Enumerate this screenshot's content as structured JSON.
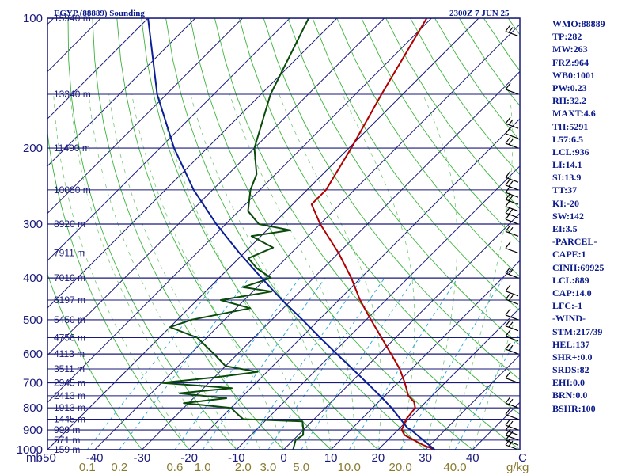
{
  "chart_data": {
    "type": "line",
    "title": "EGYP (88889) Sounding",
    "valid_time": "2300Z  7 JUN 25",
    "y_axis": {
      "scale": "log-pressure",
      "ylim": [
        1000,
        100
      ],
      "pressure_ticks": [
        "100",
        "200",
        "300",
        "400",
        "500",
        "600",
        "700",
        "800",
        "900",
        "1000"
      ],
      "unit_label": "mb"
    },
    "x_axis": {
      "type": "skewed-temperature",
      "xlim_at_1000mb": [
        -50,
        50
      ],
      "temp_ticks": [
        "-50",
        "-40",
        "-30",
        "-20",
        "-10",
        "0",
        "10",
        "20",
        "30",
        "40"
      ],
      "unit_label": "C"
    },
    "height_labels": [
      {
        "p": 1000,
        "label": "159 m"
      },
      {
        "p": 950,
        "label": "571 m"
      },
      {
        "p": 900,
        "label": "999 m"
      },
      {
        "p": 850,
        "label": "1445 m"
      },
      {
        "p": 800,
        "label": "1913 m"
      },
      {
        "p": 750,
        "label": "2413 m"
      },
      {
        "p": 700,
        "label": "2945 m"
      },
      {
        "p": 650,
        "label": "3511 m"
      },
      {
        "p": 600,
        "label": "4113 m"
      },
      {
        "p": 550,
        "label": "4756 m"
      },
      {
        "p": 500,
        "label": "5450 m"
      },
      {
        "p": 450,
        "label": "6197 m"
      },
      {
        "p": 400,
        "label": "7010 m"
      },
      {
        "p": 350,
        "label": "7911 m"
      },
      {
        "p": 300,
        "label": "8920 m"
      },
      {
        "p": 250,
        "label": "10080 m"
      },
      {
        "p": 200,
        "label": "11490 m"
      },
      {
        "p": 150,
        "label": "13340 m"
      },
      {
        "p": 100,
        "label": "15940 m"
      }
    ],
    "mixing_ratio_labels": [
      "0.1",
      "0.2",
      "0.6",
      "1.0",
      "2.0",
      "3.0",
      "5.0",
      "10.0",
      "20.0",
      "40.0"
    ],
    "mixing_ratio_unit": "g/kg",
    "series": [
      {
        "key": "temperature",
        "color": "#b00000",
        "points": [
          {
            "p": 1000,
            "t": 32.0
          },
          {
            "p": 975,
            "t": 28.5
          },
          {
            "p": 950,
            "t": 25.5
          },
          {
            "p": 925,
            "t": 22.5
          },
          {
            "p": 900,
            "t": 20.8
          },
          {
            "p": 850,
            "t": 19.5
          },
          {
            "p": 800,
            "t": 19.0
          },
          {
            "p": 775,
            "t": 17.5
          },
          {
            "p": 750,
            "t": 15.0
          },
          {
            "p": 700,
            "t": 11.5
          },
          {
            "p": 650,
            "t": 7.5
          },
          {
            "p": 600,
            "t": 2.5
          },
          {
            "p": 550,
            "t": -3.0
          },
          {
            "p": 500,
            "t": -9.0
          },
          {
            "p": 450,
            "t": -15.5
          },
          {
            "p": 400,
            "t": -22.0
          },
          {
            "p": 350,
            "t": -30.0
          },
          {
            "p": 300,
            "t": -40.0
          },
          {
            "p": 270,
            "t": -46.0
          },
          {
            "p": 250,
            "t": -46.0
          },
          {
            "p": 200,
            "t": -49.5
          },
          {
            "p": 150,
            "t": -54.5
          },
          {
            "p": 100,
            "t": -61.0
          }
        ]
      },
      {
        "key": "dewpoint",
        "color": "#0a4a0a",
        "points": [
          {
            "p": 1000,
            "t": 2.0
          },
          {
            "p": 950,
            "t": 0.5
          },
          {
            "p": 925,
            "t": 1.0
          },
          {
            "p": 900,
            "t": 0.0
          },
          {
            "p": 860,
            "t": -2.0
          },
          {
            "p": 850,
            "t": -15.0
          },
          {
            "p": 830,
            "t": -17.0
          },
          {
            "p": 800,
            "t": -20.0
          },
          {
            "p": 780,
            "t": -31.0
          },
          {
            "p": 760,
            "t": -23.0
          },
          {
            "p": 740,
            "t": -34.0
          },
          {
            "p": 720,
            "t": -24.0
          },
          {
            "p": 700,
            "t": -40.0
          },
          {
            "p": 680,
            "t": -30.0
          },
          {
            "p": 660,
            "t": -22.0
          },
          {
            "p": 640,
            "t": -30.0
          },
          {
            "p": 600,
            "t": -35.0
          },
          {
            "p": 550,
            "t": -42.0
          },
          {
            "p": 520,
            "t": -50.0
          },
          {
            "p": 500,
            "t": -47.0
          },
          {
            "p": 470,
            "t": -37.0
          },
          {
            "p": 450,
            "t": -45.0
          },
          {
            "p": 430,
            "t": -36.0
          },
          {
            "p": 420,
            "t": -43.0
          },
          {
            "p": 400,
            "t": -39.0
          },
          {
            "p": 380,
            "t": -44.0
          },
          {
            "p": 360,
            "t": -48.0
          },
          {
            "p": 340,
            "t": -45.0
          },
          {
            "p": 320,
            "t": -52.0
          },
          {
            "p": 310,
            "t": -45.0
          },
          {
            "p": 300,
            "t": -53.0
          },
          {
            "p": 280,
            "t": -58.0
          },
          {
            "p": 250,
            "t": -62.0
          },
          {
            "p": 230,
            "t": -64.0
          },
          {
            "p": 200,
            "t": -70.0
          },
          {
            "p": 150,
            "t": -78.0
          },
          {
            "p": 100,
            "t": -86.0
          }
        ]
      },
      {
        "key": "parcel",
        "color": "#0a1e96",
        "points": [
          {
            "p": 1000,
            "t": 32.0
          },
          {
            "p": 950,
            "t": 27.5
          },
          {
            "p": 900,
            "t": 22.8
          },
          {
            "p": 889,
            "t": 21.5
          },
          {
            "p": 850,
            "t": 18.3
          },
          {
            "p": 800,
            "t": 14.0
          },
          {
            "p": 750,
            "t": 9.0
          },
          {
            "p": 700,
            "t": 3.5
          },
          {
            "p": 650,
            "t": -2.5
          },
          {
            "p": 600,
            "t": -9.0
          },
          {
            "p": 550,
            "t": -16.0
          },
          {
            "p": 500,
            "t": -23.5
          },
          {
            "p": 450,
            "t": -32.0
          },
          {
            "p": 400,
            "t": -41.0
          },
          {
            "p": 350,
            "t": -51.0
          },
          {
            "p": 300,
            "t": -62.0
          },
          {
            "p": 250,
            "t": -74.0
          },
          {
            "p": 200,
            "t": -87.0
          },
          {
            "p": 150,
            "t": -102.0
          },
          {
            "p": 100,
            "t": -120.0
          }
        ]
      }
    ],
    "wind_barb_levels": [
      1000,
      975,
      950,
      925,
      900,
      850,
      800,
      700,
      600,
      560,
      530,
      500,
      460,
      440,
      400,
      350,
      320,
      300,
      290,
      280,
      270,
      260,
      250,
      240,
      200,
      190,
      180,
      150,
      110
    ]
  },
  "indices": {
    "colors": {
      "title": "#0b1a8c",
      "temperature": "#b00000",
      "dewpoint": "#0a4a0a",
      "parcel": "#0a1e96",
      "isobar": "#1a1a7a"
    },
    "items": [
      "WMO:88889",
      "TP:282",
      "MW:263",
      "FRZ:964",
      "WB0:1001",
      "PW:0.23",
      "RH:32.2",
      "MAXT:4.6",
      "TH:5291",
      "L57:6.5",
      "LCL:936",
      "LI:14.1",
      "SI:13.9",
      "TT:37",
      "KI:-20",
      "SW:142",
      "EI:3.5",
      "-PARCEL-",
      "CAPE:1",
      "CINH:69925",
      "LCL:889",
      "CAP:14.0",
      "LFC:-1",
      "-WIND-",
      "STM:217/39",
      "HEL:137",
      "SHR+:0.0",
      "SRDS:82",
      "EHI:0.0",
      "BRN:0.0",
      "BSHR:100"
    ]
  }
}
